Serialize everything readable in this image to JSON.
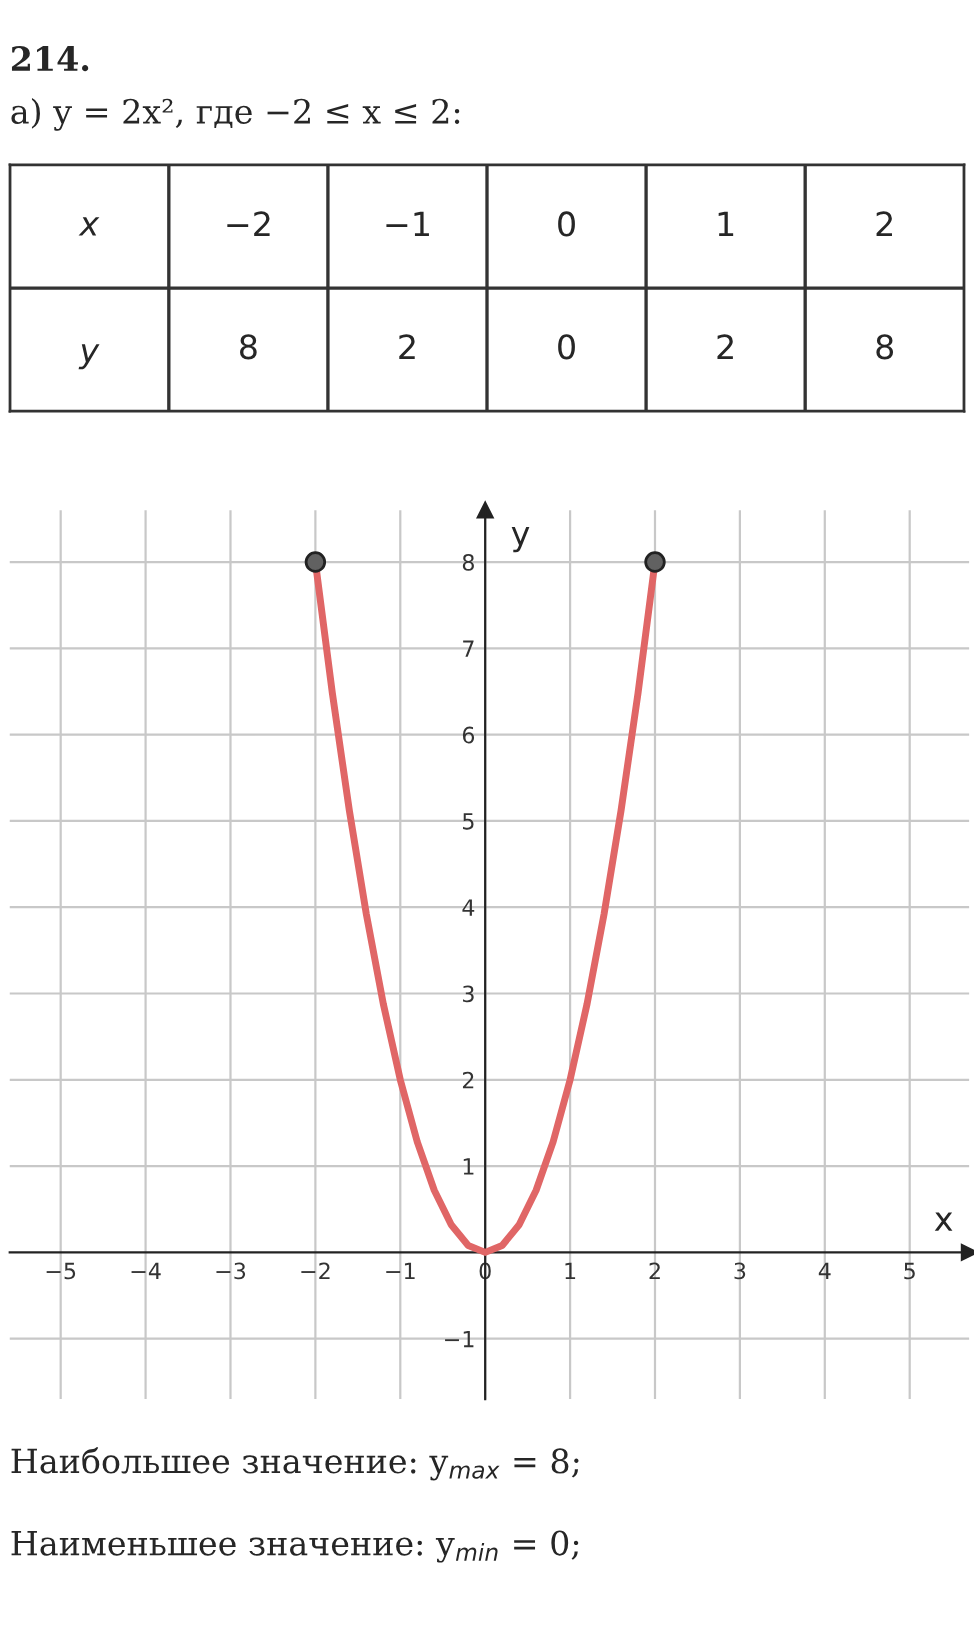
{
  "chart_data": [
    {
      "type": "heatmap",
      "title": "214.",
      "subtitle": "а) y = 2x², где −2 ≤ x ≤ 2:",
      "xlabel": "x",
      "categories": [
        "−2",
        "−1",
        "0",
        "1",
        "2"
      ],
      "y_categories": [
        "y"
      ],
      "cells": [
        [
          8,
          2,
          0,
          2,
          8
        ]
      ],
      "grid": true,
      "data_labels": true
    },
    {
      "type": "line",
      "xlabel": "x",
      "ylabel": "y",
      "series": [
        {
          "type": "line",
          "color": "#e06666",
          "marker": "none",
          "x": [
            -2,
            -1.8,
            -1.6,
            -1.4,
            -1.2,
            -1,
            -0.8,
            -0.6,
            -0.4,
            -0.2,
            0,
            0.2,
            0.4,
            0.6,
            0.8,
            1,
            1.2,
            1.4,
            1.6,
            1.8,
            2
          ],
          "values": [
            8,
            6.48,
            5.12,
            3.92,
            2.88,
            2,
            1.28,
            0.72,
            0.32,
            0.08,
            0,
            0.08,
            0.32,
            0.72,
            1.28,
            2,
            2.88,
            3.92,
            5.12,
            6.48,
            8
          ]
        },
        {
          "type": "scatter",
          "color": "#616161",
          "marker": "circle",
          "x": [
            -2,
            2
          ],
          "values": [
            8,
            8
          ]
        }
      ],
      "xlim": [
        -5.6,
        5.7
      ],
      "ylim": [
        -1.7,
        8.6
      ],
      "xticks": [
        -5,
        -4,
        -3,
        -2,
        -1,
        0,
        1,
        2,
        3,
        4,
        5
      ],
      "yticks": [
        -1,
        1,
        2,
        3,
        4,
        5,
        6,
        7,
        8
      ],
      "grid": true,
      "line_style": "solid",
      "annotations": [
        "Наибольшее значение: y$_{max}$ = 8;",
        "Наименьшее значение: y$_{min}$ = 0;"
      ]
    }
  ]
}
